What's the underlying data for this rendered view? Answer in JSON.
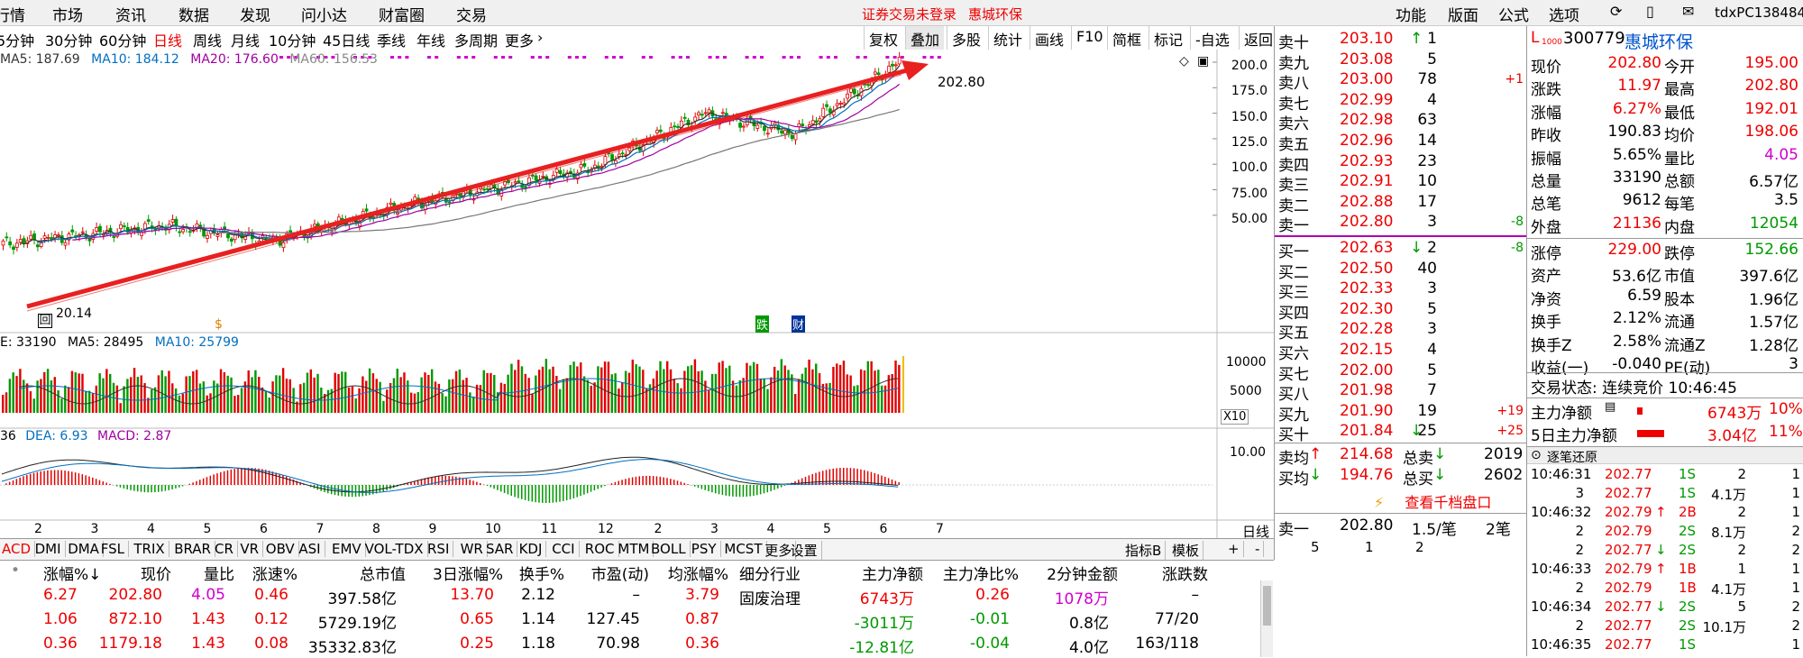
{
  "menu": [
    "行情",
    "市场",
    "资讯",
    "数据",
    "发现",
    "问小达",
    "财富圈",
    "交易"
  ],
  "status_msg": "证券交易未登录",
  "status_name": "惠城环保",
  "right_menu": [
    "功能",
    "版面",
    "公式",
    "选项"
  ],
  "user": "tdxPC138484",
  "periods": [
    "5分钟",
    "30分钟",
    "60分钟",
    "日线",
    "周线",
    "月线",
    "10分钟",
    "45日线",
    "季线",
    "年线",
    "多周期",
    "更多"
  ],
  "toolbtns": [
    "复权",
    "叠加",
    "多股",
    "统计",
    "画线",
    "F10",
    "简框",
    "标记",
    "-自选",
    "返回"
  ],
  "ma": {
    "ma5": "MA5: 187.69",
    "ma10": "MA10: 184.12",
    "ma20": "MA20: 176.60",
    "ma60": "MA60: 156.53"
  },
  "yaxis": [
    "200.0",
    "175.0",
    "150.0",
    "125.0",
    "100.0",
    "75.00",
    "50.00"
  ],
  "hi_label": "202.80",
  "lo_label": "20.14",
  "marker1": "$",
  "marker2": "跌",
  "marker3": "财",
  "vol": {
    "label": "E: 33190",
    "ma5": "MA5: 28495",
    "ma10": "MA10: 25799",
    "y1": "10000",
    "y2": "5000",
    "x10": "X10"
  },
  "macd": {
    "label": "36",
    "dea": "DEA: 6.93",
    "macd": "MACD: 2.87",
    "y1": "10.00"
  },
  "months": [
    "2",
    "3",
    "4",
    "5",
    "6",
    "7",
    "8",
    "9",
    "10",
    "11",
    "12",
    "2",
    "3",
    "4",
    "5",
    "6",
    "7"
  ],
  "period_label": "日线",
  "indtabs": [
    "ACD",
    "DMI",
    "DMA",
    "FSL",
    "TRIX",
    "BRAR",
    "CR",
    "VR",
    "OBV",
    "ASI",
    "EMV",
    "VOL-TDX",
    "RSI",
    "WR",
    "SAR",
    "KDJ",
    "CCI",
    "ROC",
    "MTM",
    "BOLL",
    "PSY",
    "MCST",
    "更多",
    "设置"
  ],
  "indright": [
    "指标B",
    "模板",
    "+",
    "-"
  ],
  "sells": [
    [
      "卖十",
      "203.10",
      "↑",
      "1",
      ""
    ],
    [
      "卖九",
      "203.08",
      "",
      "5",
      ""
    ],
    [
      "卖八",
      "203.00",
      "",
      "78",
      "+1"
    ],
    [
      "卖七",
      "202.99",
      "",
      "4",
      ""
    ],
    [
      "卖六",
      "202.98",
      "",
      "63",
      ""
    ],
    [
      "卖五",
      "202.96",
      "",
      "14",
      ""
    ],
    [
      "卖四",
      "202.93",
      "",
      "23",
      ""
    ],
    [
      "卖三",
      "202.91",
      "",
      "10",
      ""
    ],
    [
      "卖二",
      "202.88",
      "",
      "17",
      ""
    ],
    [
      "卖一",
      "202.80",
      "",
      "3",
      "-8"
    ]
  ],
  "buys": [
    [
      "买一",
      "202.63",
      "↓",
      "2",
      "-8"
    ],
    [
      "买二",
      "202.50",
      "",
      "40",
      ""
    ],
    [
      "买三",
      "202.33",
      "",
      "3",
      ""
    ],
    [
      "买四",
      "202.30",
      "",
      "5",
      ""
    ],
    [
      "买五",
      "202.28",
      "",
      "3",
      ""
    ],
    [
      "买六",
      "202.15",
      "",
      "4",
      ""
    ],
    [
      "买七",
      "202.00",
      "",
      "5",
      ""
    ],
    [
      "买八",
      "201.98",
      "",
      "7",
      ""
    ],
    [
      "买九",
      "201.90",
      "",
      "19",
      "+19"
    ],
    [
      "买十",
      "201.84",
      "↓",
      "25",
      "+25"
    ]
  ],
  "avg": {
    "sell_label": "卖均",
    "sell_val": "214.68",
    "tsell_label": "总卖",
    "tsell_val": "2019",
    "buy_label": "买均",
    "buy_val": "194.76",
    "tbuy_label": "总买",
    "tbuy_val": "2602"
  },
  "view_depth": "查看千档盘口",
  "bottom_order": {
    "label": "卖一",
    "price": "202.80",
    "info": "1.5/笔",
    "count": "2笔",
    "a": "5",
    "b": "1",
    "c": "2"
  },
  "stock": {
    "flag": "L",
    "code": "300779",
    "name": "惠城环保"
  },
  "quote": [
    [
      "现价",
      "202.80",
      "今开",
      "195.00",
      "r",
      "r"
    ],
    [
      "涨跌",
      "11.97",
      "最高",
      "202.80",
      "r",
      "r"
    ],
    [
      "涨幅",
      "6.27%",
      "最低",
      "192.01",
      "r",
      "r"
    ],
    [
      "昨收",
      "190.83",
      "均价",
      "198.06",
      "k",
      "r"
    ],
    [
      "振幅",
      "5.65%",
      "量比",
      "4.05",
      "k",
      "p"
    ],
    [
      "总量",
      "33190",
      "总额",
      "6.57亿",
      "k",
      "k"
    ],
    [
      "总笔",
      "9612",
      "每笔",
      "3.5",
      "k",
      "k"
    ],
    [
      "外盘",
      "21136",
      "内盘",
      "12054",
      "r",
      "g"
    ]
  ],
  "quote2": [
    [
      "涨停",
      "229.00",
      "跌停",
      "152.66",
      "r",
      "g"
    ],
    [
      "资产",
      "53.6亿",
      "市值",
      "397.6亿",
      "k",
      "k"
    ],
    [
      "净资",
      "6.59",
      "股本",
      "1.96亿",
      "k",
      "k"
    ],
    [
      "换手",
      "2.12%",
      "流通",
      "1.57亿",
      "k",
      "k"
    ],
    [
      "换手Z",
      "2.58%",
      "流通Z",
      "1.28亿",
      "k",
      "k"
    ],
    [
      "收益(一)",
      "-0.040",
      "PE(动)",
      "3",
      "k",
      "k"
    ]
  ],
  "trade_state": "交易状态: 连续竞价 10:46:45",
  "main_flow": {
    "label": "主力净额",
    "val": "6743万",
    "pct": "10%"
  },
  "main_flow5": {
    "label": "5日主力净额",
    "val": "3.04亿",
    "pct": "11%"
  },
  "tick_title": "逐笔还原",
  "ticks": [
    [
      "10:46:31",
      "202.77",
      "",
      "1S",
      "2",
      "1"
    ],
    [
      "3",
      "202.77",
      "",
      "1S",
      "4.1万",
      "1"
    ],
    [
      "10:46:32",
      "202.79",
      "↑",
      "2B",
      "2",
      "1"
    ],
    [
      "2",
      "202.79",
      "",
      "2S",
      "8.1万",
      "2"
    ],
    [
      "2",
      "202.77",
      "↓",
      "2S",
      "2",
      "2"
    ],
    [
      "10:46:33",
      "202.79",
      "↑",
      "1B",
      "1",
      "1"
    ],
    [
      "2",
      "202.79",
      "",
      "1B",
      "4.1万",
      "1"
    ],
    [
      "10:46:34",
      "202.77",
      "↓",
      "2S",
      "5",
      "2"
    ],
    [
      "2",
      "202.77",
      "",
      "2S",
      "10.1万",
      "2"
    ],
    [
      "10:46:35",
      "202.77",
      "",
      "1S",
      "",
      "1"
    ]
  ],
  "table": {
    "headers": [
      "涨幅%↓",
      "现价",
      "量比",
      "涨速%",
      "总市值",
      "3日涨幅%",
      "换手%",
      "市盈(动)",
      "均涨幅%",
      "细分行业",
      "主力净额",
      "主力净比%",
      "2分钟金额",
      "涨跌数"
    ],
    "rows": [
      [
        "6.27",
        "202.80",
        "4.05",
        "0.46",
        "397.58亿",
        "13.70",
        "2.12",
        "–",
        "3.79",
        "固废治理",
        "6743万",
        "0.26",
        "1078万",
        "–"
      ],
      [
        "1.06",
        "872.10",
        "1.43",
        "0.12",
        "5729.19亿",
        "0.65",
        "1.14",
        "127.45",
        "0.87",
        "",
        "-3011万",
        "-0.01",
        "0.8亿",
        "77/20"
      ],
      [
        "0.36",
        "1179.18",
        "1.43",
        "0.08",
        "35332.83亿",
        "0.25",
        "1.18",
        "70.98",
        "0.36",
        "",
        "-12.81亿",
        "-0.04",
        "4.0亿",
        "163/118"
      ]
    ]
  },
  "colors": {
    "up": "#e00000",
    "down": "#009900",
    "ma5": "#333333",
    "ma10": "#0070c0",
    "ma20": "#a000a0",
    "ma60": "#777777",
    "pink": "#d000d0"
  }
}
